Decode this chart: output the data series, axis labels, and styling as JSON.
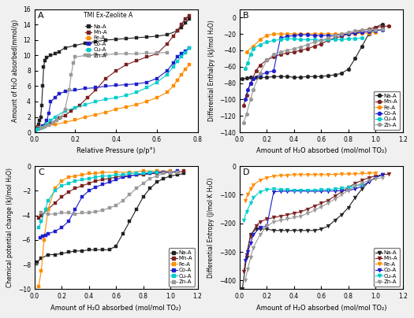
{
  "panel_A_title": "TMI Ex-Zeolite A",
  "panel_A_xlabel": "Relative Pressure (p/p°)",
  "panel_A_ylabel": "Amount of H₂O absorbed(mmol/g)",
  "panel_B_xlabel": "Amount of H₂O absorbed (mol/mol TO₂)",
  "panel_B_ylabel": "Differential Enthalpy (kJ/mol H₂O)",
  "panel_C_xlabel": "Amount of H₂O absorbed (mol/mol TO₂)",
  "panel_C_ylabel": "Chemical potential change (kJ/mol H₂O)",
  "panel_D_xlabel": "Amount of H₂O absorbed (mol/mol TO₂)",
  "panel_D_ylabel": "Differential Entropy (J/mol·K H₂O)",
  "species": [
    "Na-A",
    "Mn-A",
    "Fe-A",
    "Co-A",
    "Cu-A",
    "Zn-A"
  ],
  "colors": [
    "#222222",
    "#7B2020",
    "#FF8C00",
    "#1F1FCC",
    "#00CCCC",
    "#999999"
  ],
  "panel_A_ylim": [
    0,
    16
  ],
  "panel_A_xlim": [
    0.0,
    0.8
  ],
  "panel_B_ylim": [
    -140,
    10
  ],
  "panel_B_xlim": [
    0.0,
    1.2
  ],
  "panel_C_ylim": [
    -10,
    0
  ],
  "panel_C_xlim": [
    0.0,
    1.2
  ],
  "panel_D_ylim": [
    -430,
    0
  ],
  "panel_D_xlim": [
    0.0,
    1.2
  ],
  "background_color": "#f0f0f0"
}
